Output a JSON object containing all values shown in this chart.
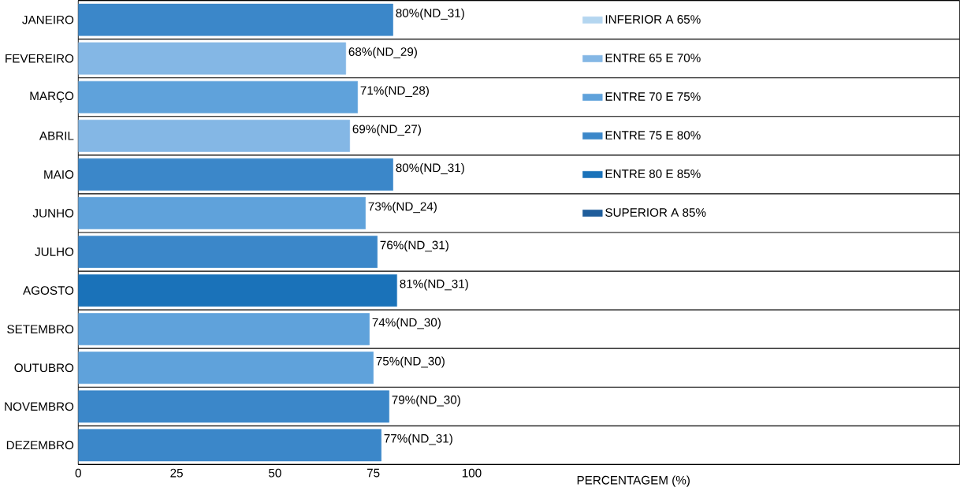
{
  "chart_data": {
    "type": "bar",
    "orientation": "horizontal",
    "stacked": false,
    "xlabel": "PERCENTAGEM (%)",
    "categories": [
      "JANEIRO",
      "FEVEREIRO",
      "MARÇO",
      "ABRIL",
      "MAIO",
      "JUNHO",
      "JULHO",
      "AGOSTO",
      "SETEMBRO",
      "OUTUBRO",
      "NOVEMBRO",
      "DEZEMBRO"
    ],
    "series": [
      {
        "name": "INFERIOR A 65%",
        "color": "#b4d6f0",
        "values": [
          null,
          null,
          null,
          null,
          null,
          null,
          null,
          null,
          null,
          null,
          null,
          null
        ]
      },
      {
        "name": "ENTRE  65 E  70%",
        "color": "#84b7e5",
        "values": [
          null,
          68,
          null,
          69,
          null,
          null,
          null,
          null,
          null,
          null,
          null,
          null
        ],
        "value_labels": [
          null,
          "68%(ND_29)",
          null,
          "69%(ND_27)",
          null,
          null,
          null,
          null,
          null,
          null,
          null,
          null
        ]
      },
      {
        "name": "ENTRE  70 E  75%",
        "color": "#5fa2db",
        "values": [
          null,
          null,
          71,
          null,
          null,
          73,
          null,
          null,
          74,
          75,
          null,
          null
        ],
        "value_labels": [
          null,
          null,
          "71%(ND_28)",
          null,
          null,
          "73%(ND_24)",
          null,
          null,
          "74%(ND_30)",
          "75%(ND_30)",
          null,
          null
        ]
      },
      {
        "name": "ENTRE 75 E  80%",
        "color": "#3b87c9",
        "values": [
          80,
          null,
          null,
          null,
          80,
          null,
          76,
          null,
          null,
          null,
          79,
          77
        ],
        "value_labels": [
          "80%(ND_31)",
          null,
          null,
          null,
          "80%(ND_31)",
          null,
          "76%(ND_31)",
          null,
          null,
          null,
          "79%(ND_30)",
          "77%(ND_31)"
        ]
      },
      {
        "name": "ENTRE  80 E  85%",
        "color": "#1a72b9",
        "values": [
          null,
          null,
          null,
          null,
          null,
          null,
          null,
          81,
          null,
          null,
          null,
          null
        ],
        "value_labels": [
          null,
          null,
          null,
          null,
          null,
          null,
          null,
          "81%(ND_31)",
          null,
          null,
          null,
          null
        ]
      },
      {
        "name": "SUPERIOR A 85%",
        "color": "#1f5d9b",
        "values": [
          null,
          null,
          null,
          null,
          null,
          null,
          null,
          null,
          null,
          null,
          null,
          null
        ]
      }
    ],
    "xlim": [
      0,
      224
    ],
    "xticks": [
      0,
      25,
      50,
      75,
      100
    ],
    "grid": "y",
    "legend": "top"
  }
}
